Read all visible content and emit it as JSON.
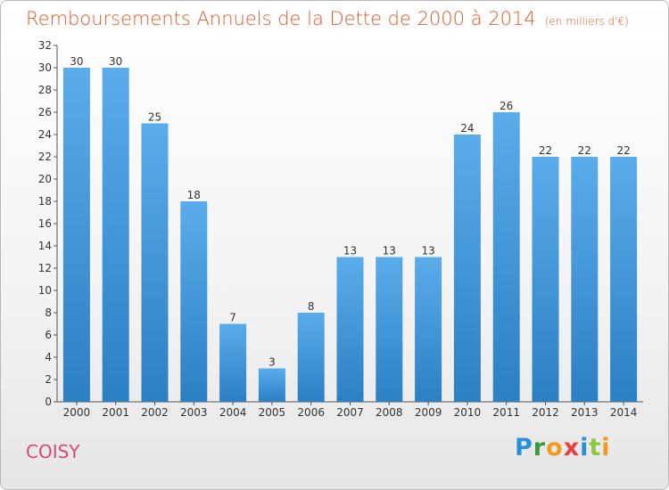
{
  "chart_data": {
    "type": "bar",
    "title": "Remboursements Annuels de la Dette de 2000 à 2014",
    "subtitle": "(en milliers d'€)",
    "xlabel": "",
    "ylabel": "",
    "categories": [
      "2000",
      "2001",
      "2002",
      "2003",
      "2004",
      "2005",
      "2006",
      "2007",
      "2008",
      "2009",
      "2010",
      "2011",
      "2012",
      "2013",
      "2014"
    ],
    "values": [
      30,
      30,
      25,
      18,
      7,
      3,
      8,
      13,
      13,
      13,
      24,
      26,
      22,
      22,
      22
    ],
    "ylim": [
      0,
      32
    ],
    "yticks": [
      0,
      2,
      4,
      6,
      8,
      10,
      12,
      14,
      16,
      18,
      20,
      22,
      24,
      26,
      28,
      30,
      32
    ],
    "grid": false,
    "bar_color_top": "#5aaceb",
    "bar_color_bottom": "#2b7fc3"
  },
  "footer": {
    "commune": "COISY",
    "brand_letters": [
      {
        "ch": "P",
        "color": "#2a8fd6"
      },
      {
        "ch": "r",
        "color": "#3a9a3a"
      },
      {
        "ch": "o",
        "color": "#f39a1c"
      },
      {
        "ch": "x",
        "color": "#e83f3f"
      },
      {
        "ch": "i",
        "color": "#2a8fd6"
      },
      {
        "ch": "t",
        "color": "#8cc63f"
      },
      {
        "ch": "i",
        "color": "#f39a1c"
      }
    ]
  }
}
